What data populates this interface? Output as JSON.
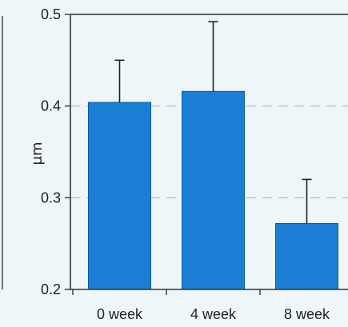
{
  "chart_data": {
    "type": "bar",
    "categories": [
      "0 week",
      "4 week",
      "8 week"
    ],
    "values": [
      0.404,
      0.416,
      0.272
    ],
    "error_upper": [
      0.45,
      0.492,
      0.32
    ],
    "ylabel": "μm",
    "xlabel": "",
    "title": "",
    "ylim": [
      0.2,
      0.5
    ],
    "yticks": [
      "0.2",
      "0.3",
      "0.4",
      "0.5"
    ],
    "grid": "dashed horizontal lines at 0.3 and 0.4",
    "legend": "none",
    "colors": {
      "bar": "#1a7fd4",
      "bar_edge": "#0d5aa3",
      "axis": "#333333",
      "grid": "#b5b5b5",
      "background": "#eef6f9"
    }
  }
}
